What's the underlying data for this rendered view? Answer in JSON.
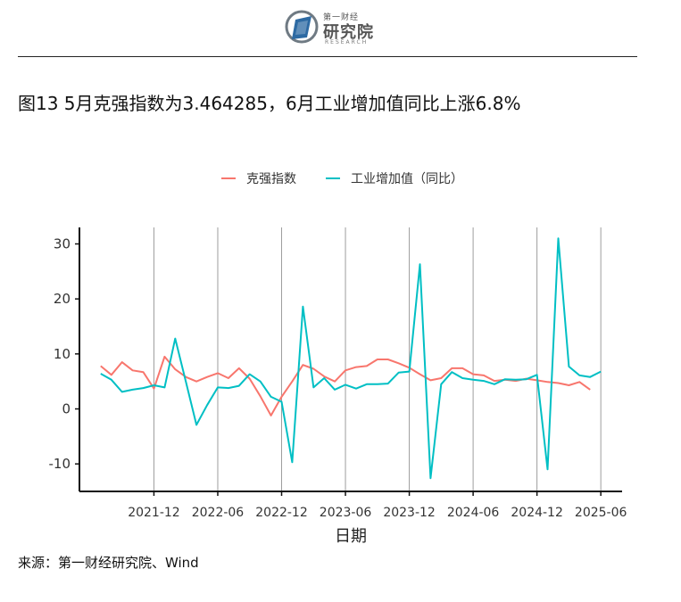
{
  "header": {
    "logo_small": "第一财经",
    "logo_name": "研究院",
    "logo_en": "RESEARCH"
  },
  "title": "图13 5月克强指数为3.464285，6月工业增加值同比上涨6.8%",
  "source": "来源：第一财经研究院、Wind",
  "colors": {
    "keqiang": "#F8766D",
    "industrial": "#00BFC4",
    "grid": "#9e9e9e",
    "axis": "#111111"
  },
  "chart_data": {
    "type": "line",
    "xlabel": "日期",
    "ylabel": "",
    "ylim": [
      -15,
      33
    ],
    "yticks": [
      -10,
      0,
      10,
      20,
      30
    ],
    "xlim": [
      "2021-05",
      "2025-08"
    ],
    "xticks": [
      "2021-12",
      "2022-06",
      "2022-12",
      "2023-06",
      "2023-12",
      "2024-06",
      "2024-12",
      "2025-06"
    ],
    "grid": "vertical at x ticks",
    "legend_position": "top",
    "series": [
      {
        "name": "克强指数",
        "color": "#F8766D",
        "x": [
          "2021-07",
          "2021-08",
          "2021-09",
          "2021-10",
          "2021-11",
          "2021-12",
          "2022-01",
          "2022-02",
          "2022-03",
          "2022-04",
          "2022-05",
          "2022-06",
          "2022-07",
          "2022-08",
          "2022-09",
          "2022-10",
          "2022-11",
          "2022-12",
          "2023-01",
          "2023-02",
          "2023-03",
          "2023-04",
          "2023-05",
          "2023-06",
          "2023-07",
          "2023-08",
          "2023-09",
          "2023-10",
          "2023-11",
          "2023-12",
          "2024-01",
          "2024-02",
          "2024-03",
          "2024-04",
          "2024-05",
          "2024-06",
          "2024-07",
          "2024-08",
          "2024-09",
          "2024-10",
          "2024-11",
          "2024-12",
          "2025-01",
          "2025-02",
          "2025-03",
          "2025-04",
          "2025-05"
        ],
        "y": [
          7.8,
          6.2,
          8.5,
          7.0,
          6.7,
          3.7,
          9.5,
          7.2,
          5.8,
          5.0,
          5.8,
          6.5,
          5.6,
          7.4,
          5.5,
          2.3,
          -1.2,
          2.2,
          5.0,
          8.0,
          7.3,
          5.9,
          5.0,
          7.0,
          7.6,
          7.8,
          9.0,
          9.0,
          8.3,
          7.5,
          6.3,
          5.2,
          5.6,
          7.4,
          7.4,
          6.3,
          6.1,
          5.1,
          5.3,
          5.1,
          5.5,
          5.2,
          4.9,
          4.7,
          4.3,
          4.9,
          3.5
        ]
      },
      {
        "name": "工业增加值（同比）",
        "color": "#00BFC4",
        "x": [
          "2021-07",
          "2021-08",
          "2021-09",
          "2021-10",
          "2021-11",
          "2021-12",
          "2022-01",
          "2022-02",
          "2022-03",
          "2022-04",
          "2022-05",
          "2022-06",
          "2022-07",
          "2022-08",
          "2022-09",
          "2022-10",
          "2022-11",
          "2022-12",
          "2023-01",
          "2023-02",
          "2023-03",
          "2023-04",
          "2023-05",
          "2023-06",
          "2023-07",
          "2023-08",
          "2023-09",
          "2023-10",
          "2023-11",
          "2023-12",
          "2024-01",
          "2024-02",
          "2024-03",
          "2024-04",
          "2024-05",
          "2024-06",
          "2024-07",
          "2024-08",
          "2024-09",
          "2024-10",
          "2024-11",
          "2024-12",
          "2025-01",
          "2025-02",
          "2025-03",
          "2025-04",
          "2025-05",
          "2025-06"
        ],
        "y": [
          6.4,
          5.3,
          3.1,
          3.5,
          3.8,
          4.3,
          3.9,
          12.8,
          5.0,
          -2.9,
          0.7,
          3.9,
          3.8,
          4.2,
          6.3,
          5.0,
          2.2,
          1.3,
          -9.7,
          18.6,
          3.9,
          5.6,
          3.5,
          4.4,
          3.7,
          4.5,
          4.5,
          4.6,
          6.6,
          6.8,
          26.3,
          -12.6,
          4.5,
          6.7,
          5.6,
          5.3,
          5.1,
          4.5,
          5.4,
          5.3,
          5.4,
          6.2,
          -11.0,
          31.0,
          7.7,
          6.1,
          5.8,
          6.8
        ]
      }
    ]
  }
}
